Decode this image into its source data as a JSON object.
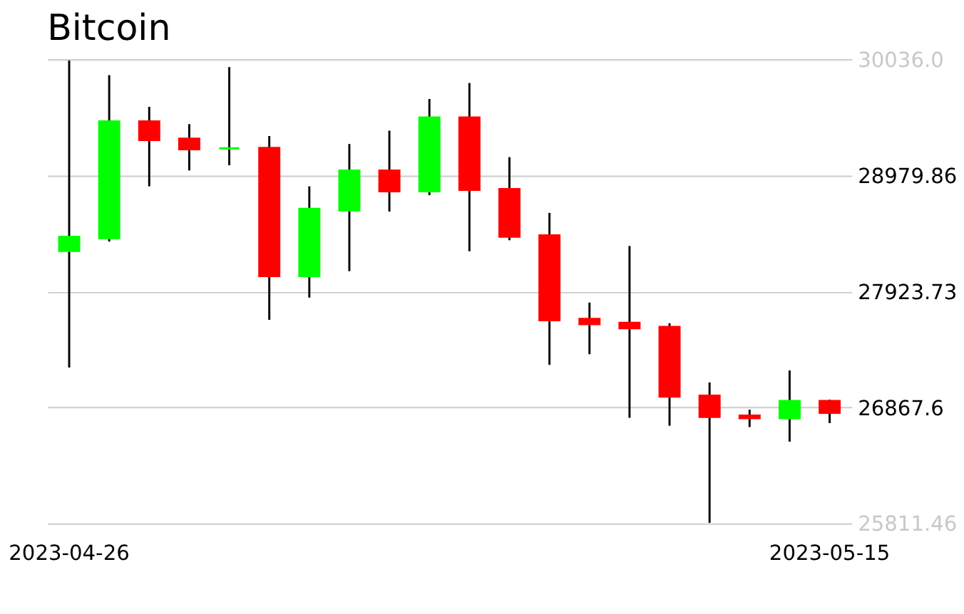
{
  "chart_data": {
    "type": "candlestick",
    "title": "Bitcoin",
    "categories": [
      "2023-04-26",
      null,
      null,
      null,
      null,
      null,
      null,
      null,
      null,
      null,
      null,
      null,
      null,
      null,
      null,
      null,
      null,
      null,
      null,
      "2023-05-15"
    ],
    "ohlc": [
      [
        28291,
        30024,
        27230,
        28420
      ],
      [
        28408,
        29891,
        28376,
        29469
      ],
      [
        29469,
        29602,
        28879,
        29301
      ],
      [
        29313,
        29445,
        29023,
        29216
      ],
      [
        29225,
        29964,
        29071,
        29225
      ],
      [
        29228,
        29337,
        27664,
        28062
      ],
      [
        28062,
        28879,
        27866,
        28674
      ],
      [
        28661,
        29264,
        28107,
        29023
      ],
      [
        29023,
        29385,
        28649,
        28834
      ],
      [
        28834,
        29674,
        28798,
        29506
      ],
      [
        29506,
        29819,
        28288,
        28846
      ],
      [
        28854,
        29144,
        28388,
        28420
      ],
      [
        28432,
        28637,
        27254,
        27661
      ],
      [
        27673,
        27821,
        27351,
        27625
      ],
      [
        27637,
        28336,
        26772,
        27588
      ],
      [
        27600,
        27633,
        26700,
        26965
      ],
      [
        26973,
        27094,
        25816,
        26781
      ],
      [
        26793,
        26846,
        26688,
        26769
      ],
      [
        26769,
        27203,
        26555,
        26925
      ],
      [
        26925,
        26937,
        26724,
        26817
      ]
    ],
    "colors": [
      "#00ff00",
      "#00ff00",
      "#ff0000",
      "#ff0000",
      "#00ff00",
      "#ff0000",
      "#00ff00",
      "#00ff00",
      "#ff0000",
      "#00ff00",
      "#ff0000",
      "#ff0000",
      "#ff0000",
      "#ff0000",
      "#ff0000",
      "#ff0000",
      "#ff0000",
      "#ff0000",
      "#00ff00",
      "#ff0000"
    ],
    "ylim": [
      25811.46,
      30036.0
    ],
    "yticks": [
      25811.46,
      26867.6,
      27923.73,
      28979.86,
      {
        "value": 30036.0,
        "label": "30036.0"
      }
    ],
    "grid": "y"
  }
}
